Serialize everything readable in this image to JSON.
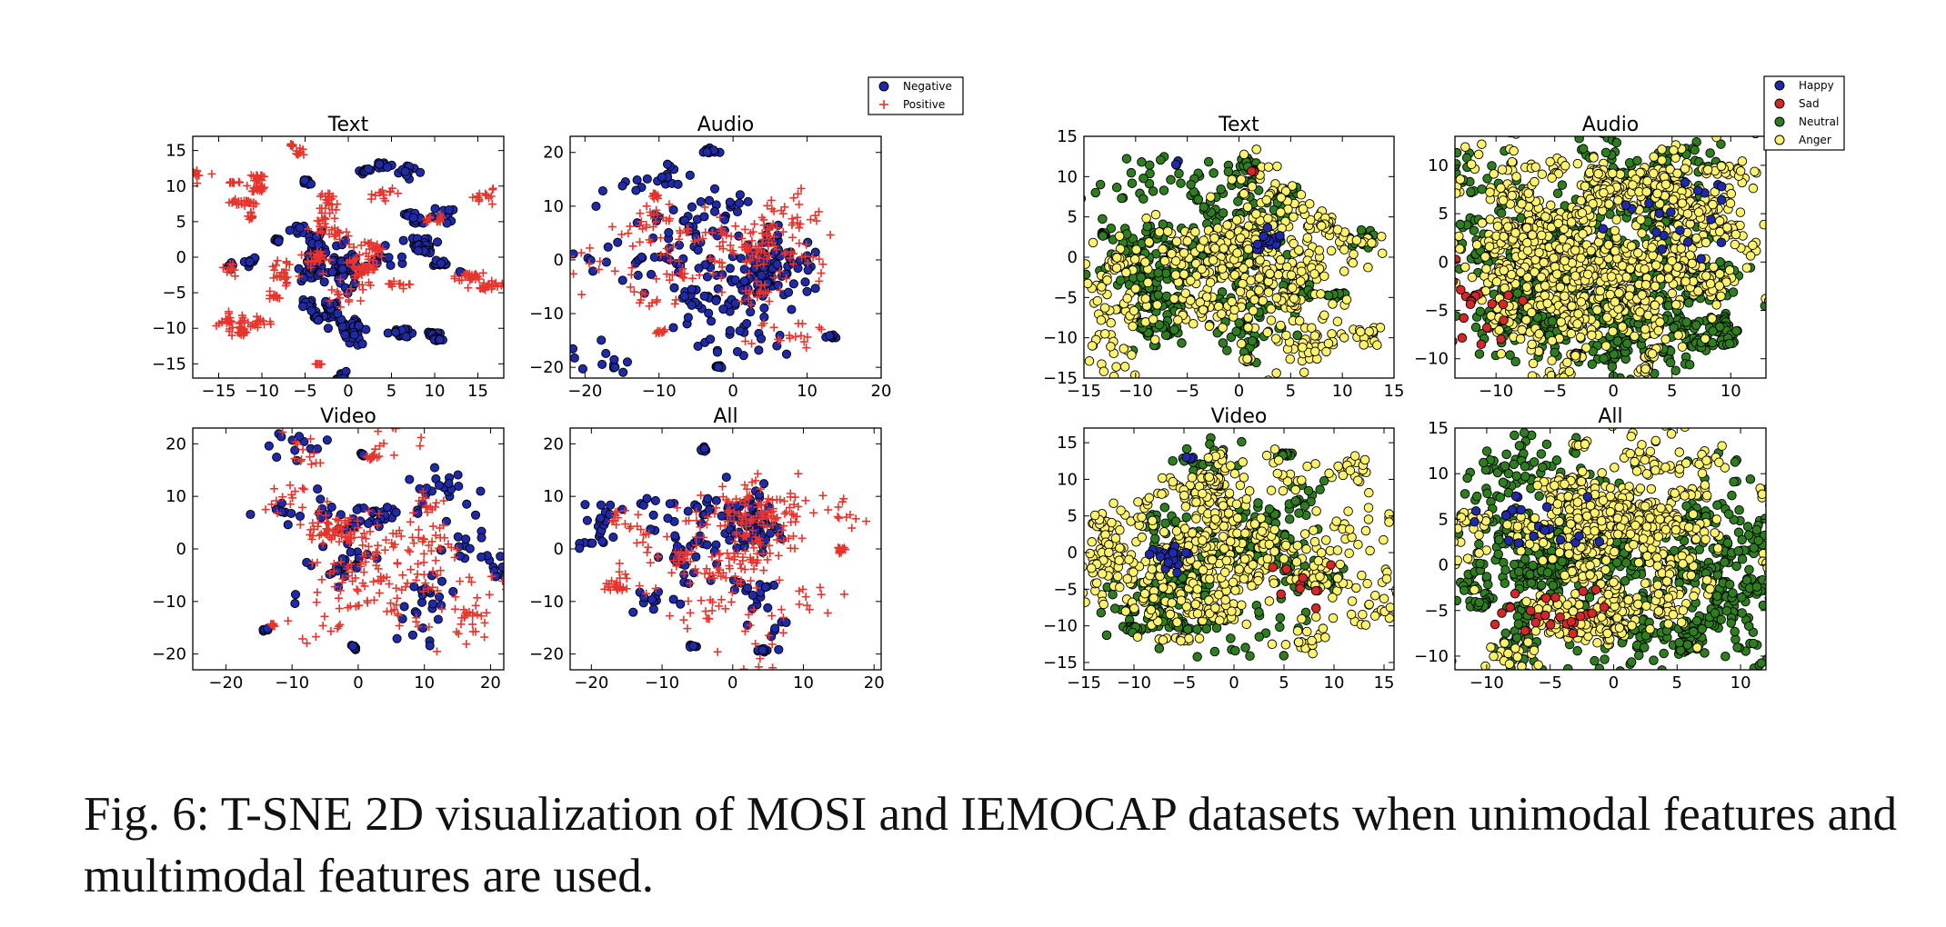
{
  "caption": "Fig. 6: T-SNE 2D visualization of MOSI and IEMOCAP datasets when unimodal features and multimodal features are used.",
  "colors": {
    "negative": "#1f2aa8",
    "positive": "#e8342c",
    "happy": "#1f2aa8",
    "sad": "#d62728",
    "neutral": "#2e7d1f",
    "anger": "#fff36b",
    "marker_edge": "#000000"
  },
  "legends": {
    "mosi": [
      {
        "label": "Negative",
        "marker": "circle",
        "color_key": "negative"
      },
      {
        "label": "Positive",
        "marker": "plus",
        "color_key": "positive"
      }
    ],
    "iemocap": [
      {
        "label": "Happy",
        "marker": "circle",
        "color_key": "happy"
      },
      {
        "label": "Sad",
        "marker": "circle",
        "color_key": "sad"
      },
      {
        "label": "Neutral",
        "marker": "circle",
        "color_key": "neutral"
      },
      {
        "label": "Anger",
        "marker": "circle",
        "color_key": "anger"
      }
    ]
  },
  "chart_data": [
    {
      "id": "mosi-text",
      "type": "scatter",
      "title": "Text",
      "dataset": "MOSI",
      "xlim": [
        -18,
        18
      ],
      "ylim": [
        -17,
        17
      ],
      "xticks": [
        -15,
        -10,
        -5,
        0,
        5,
        10,
        15
      ],
      "yticks": [
        -15,
        -10,
        -5,
        0,
        5,
        10,
        15
      ],
      "series": [
        {
          "name": "Negative",
          "color_key": "negative",
          "marker": "circle",
          "clusters": [
            [
              2,
              13,
              2.2,
              1.3,
              40
            ],
            [
              -6,
              4,
              1.5,
              1.2,
              25
            ],
            [
              0,
              0,
              4,
              3.5,
              120
            ],
            [
              1,
              -9,
              1.6,
              4,
              60
            ],
            [
              9,
              2,
              2.6,
              1.2,
              50
            ],
            [
              8,
              -10.5,
              2.5,
              0.8,
              45
            ],
            [
              -4,
              -7,
              1.6,
              2,
              30
            ],
            [
              -11,
              -1,
              1.5,
              1.5,
              20
            ],
            [
              5,
              6,
              2,
              1.5,
              30
            ],
            [
              -5,
              11,
              1,
              1,
              10
            ],
            [
              13,
              -1.5,
              0.4,
              0.4,
              3
            ]
          ]
        },
        {
          "name": "Positive",
          "color_key": "positive",
          "marker": "plus",
          "clusters": [
            [
              -14,
              9,
              3,
              1.5,
              60
            ],
            [
              -10,
              11.5,
              2,
              0.6,
              30
            ],
            [
              -10,
              4.5,
              0.8,
              1,
              15
            ],
            [
              -6,
              15,
              1,
              1.2,
              20
            ],
            [
              10,
              -4,
              4.5,
              1,
              70
            ],
            [
              -10,
              -10,
              4,
              2.5,
              60
            ],
            [
              8,
              7,
              4,
              2,
              40
            ],
            [
              -3,
              4,
              3,
              3,
              60
            ],
            [
              -5,
              -15,
              1,
              0.3,
              10
            ],
            [
              -1,
              -1,
              3.5,
              3,
              80
            ],
            [
              4,
              -1,
              1.5,
              1.2,
              25
            ],
            [
              -9,
              -2,
              2,
              2,
              30
            ]
          ]
        }
      ]
    },
    {
      "id": "mosi-audio",
      "type": "scatter",
      "title": "Audio",
      "dataset": "MOSI",
      "xlim": [
        -22,
        20
      ],
      "ylim": [
        -22,
        23
      ],
      "xticks": [
        -20,
        -10,
        0,
        10,
        20
      ],
      "yticks": [
        -20,
        -10,
        0,
        10,
        20
      ],
      "series": [
        {
          "name": "Negative",
          "color_key": "negative",
          "marker": "circle",
          "clusters": [
            [
              -3,
              1,
              10,
              9,
              260
            ],
            [
              -5,
              17,
              2,
              1,
              15
            ],
            [
              12,
              -14,
              2,
              1,
              10
            ],
            [
              -5,
              -18,
              2,
              1,
              10
            ]
          ]
        },
        {
          "name": "Positive",
          "color_key": "positive",
          "marker": "plus",
          "clusters": [
            [
              -3,
              0,
              11,
              9,
              240
            ],
            [
              -10,
              -12,
              2,
              1,
              10
            ],
            [
              -13,
              11,
              2,
              2,
              10
            ]
          ]
        }
      ]
    },
    {
      "id": "mosi-video",
      "type": "scatter",
      "title": "Video",
      "dataset": "MOSI",
      "xlim": [
        -25,
        22
      ],
      "ylim": [
        -23,
        23
      ],
      "xticks": [
        -20,
        -10,
        0,
        10,
        20
      ],
      "yticks": [
        -20,
        -10,
        0,
        10,
        20
      ],
      "series": [
        {
          "name": "Negative",
          "color_key": "negative",
          "marker": "circle",
          "clusters": [
            [
              0,
              0,
              10,
              9,
              150
            ],
            [
              -2,
              -19,
              1,
              1,
              8
            ],
            [
              1,
              18,
              1.5,
              1,
              6
            ],
            [
              -13,
              -14,
              1,
              1,
              5
            ]
          ]
        },
        {
          "name": "Positive",
          "color_key": "positive",
          "marker": "plus",
          "clusters": [
            [
              0,
              0,
              11,
              10,
              280
            ],
            [
              2,
              18,
              1.5,
              1,
              12
            ],
            [
              -13,
              -15,
              1,
              1,
              8
            ]
          ]
        }
      ]
    },
    {
      "id": "mosi-all",
      "type": "scatter",
      "title": "All",
      "dataset": "MOSI",
      "xlim": [
        -23,
        21
      ],
      "ylim": [
        -23,
        23
      ],
      "xticks": [
        -20,
        -10,
        0,
        10,
        20
      ],
      "yticks": [
        -20,
        -10,
        0,
        10,
        20
      ],
      "series": [
        {
          "name": "Negative",
          "color_key": "negative",
          "marker": "circle",
          "clusters": [
            [
              -3,
              1,
              10,
              9,
              190
            ],
            [
              -3,
              18,
              1.5,
              1,
              10
            ],
            [
              -8,
              -18,
              2,
              1,
              10
            ],
            [
              3,
              -18,
              2,
              1,
              10
            ]
          ]
        },
        {
          "name": "Positive",
          "color_key": "positive",
          "marker": "plus",
          "clusters": [
            [
              0,
              0,
              11,
              10,
              300
            ],
            [
              -16,
              -7,
              2,
              1,
              15
            ],
            [
              15,
              0,
              2,
              2,
              15
            ]
          ]
        }
      ]
    },
    {
      "id": "iemocap-text",
      "type": "scatter",
      "title": "Text",
      "dataset": "IEMOCAP",
      "xlim": [
        -15,
        15
      ],
      "ylim": [
        -15,
        15
      ],
      "xticks": [
        -15,
        -10,
        -5,
        0,
        5,
        10,
        15
      ],
      "yticks": [
        -15,
        -10,
        -5,
        0,
        5,
        10,
        15
      ],
      "series": [
        {
          "name": "Neutral",
          "color_key": "neutral",
          "marker": "circle",
          "clusters": [
            [
              -2,
              0,
              8,
              7,
              450
            ],
            [
              -13,
              2,
              1,
              1,
              20
            ],
            [
              -9,
              -9,
              2,
              1.5,
              20
            ],
            [
              8,
              -5,
              2,
              1,
              30
            ],
            [
              0,
              10,
              3,
              1.5,
              30
            ],
            [
              10,
              3,
              2,
              2,
              20
            ]
          ]
        },
        {
          "name": "Anger",
          "color_key": "anger",
          "marker": "circle",
          "clusters": [
            [
              -1,
              1,
              9,
              8,
              550
            ],
            [
              -1,
              -12,
              1,
              0.5,
              10
            ],
            [
              6,
              -6,
              2,
              1,
              40
            ],
            [
              10,
              4,
              1.2,
              1,
              20
            ],
            [
              -12,
              0,
              2,
              2,
              20
            ]
          ]
        },
        {
          "name": "Happy",
          "color_key": "happy",
          "marker": "circle",
          "clusters": [
            [
              -2,
              1,
              9,
              8,
              15
            ],
            [
              -7,
              12,
              0.5,
              0.5,
              3
            ]
          ]
        },
        {
          "name": "Sad",
          "color_key": "sad",
          "marker": "circle",
          "clusters": [
            [
              0,
              2,
              9,
              8,
              10
            ],
            [
              0,
              11,
              1,
              0.5,
              3
            ]
          ]
        }
      ]
    },
    {
      "id": "iemocap-audio",
      "type": "scatter",
      "title": "Audio",
      "dataset": "IEMOCAP",
      "xlim": [
        -13.5,
        13
      ],
      "ylim": [
        -12,
        13
      ],
      "xticks": [
        -10,
        -5,
        0,
        5,
        10
      ],
      "yticks": [
        -10,
        -5,
        0,
        5,
        10
      ],
      "series": [
        {
          "name": "Neutral",
          "color_key": "neutral",
          "marker": "circle",
          "clusters": [
            [
              0,
              0,
              8,
              7,
              1000
            ],
            [
              -7,
              -5,
              2.5,
              2,
              100
            ],
            [
              7,
              -7,
              2.5,
              2,
              100
            ]
          ]
        },
        {
          "name": "Anger",
          "color_key": "anger",
          "marker": "circle",
          "clusters": [
            [
              -1,
              1,
              8,
              7,
              900
            ],
            [
              -6,
              0,
              3,
              3,
              200
            ],
            [
              0,
              8,
              5,
              2,
              150
            ],
            [
              -2.5,
              -10,
              0.8,
              0.5,
              20
            ],
            [
              3,
              -10,
              1,
              1,
              30
            ]
          ]
        },
        {
          "name": "Happy",
          "color_key": "happy",
          "marker": "circle",
          "clusters": [
            [
              0,
              0,
              9,
              8,
              20
            ]
          ]
        },
        {
          "name": "Sad",
          "color_key": "sad",
          "marker": "circle",
          "clusters": [
            [
              0,
              -2,
              9,
              7,
              25
            ]
          ]
        }
      ]
    },
    {
      "id": "iemocap-video",
      "type": "scatter",
      "title": "Video",
      "dataset": "IEMOCAP",
      "xlim": [
        -15,
        16
      ],
      "ylim": [
        -16,
        17
      ],
      "xticks": [
        -15,
        -10,
        -5,
        0,
        5,
        10,
        15
      ],
      "yticks": [
        -15,
        -10,
        -5,
        0,
        5,
        10,
        15
      ],
      "series": [
        {
          "name": "Neutral",
          "color_key": "neutral",
          "marker": "circle",
          "clusters": [
            [
              -1,
              0,
              8,
              7,
              350
            ],
            [
              -7,
              -10,
              1.5,
              1,
              30
            ],
            [
              5,
              13,
              1,
              0.5,
              15
            ]
          ]
        },
        {
          "name": "Anger",
          "color_key": "anger",
          "marker": "circle",
          "clusters": [
            [
              -1,
              0,
              9,
              8,
              650
            ],
            [
              -3,
              10,
              2,
              1.5,
              60
            ],
            [
              -5,
              -12,
              2,
              1,
              20
            ]
          ]
        },
        {
          "name": "Happy",
          "color_key": "happy",
          "marker": "circle",
          "clusters": [
            [
              -2,
              8,
              6,
              5,
              25
            ],
            [
              -4,
              13,
              1,
              0.5,
              5
            ]
          ]
        },
        {
          "name": "Sad",
          "color_key": "sad",
          "marker": "circle",
          "clusters": [
            [
              0,
              0,
              9,
              8,
              10
            ]
          ]
        }
      ]
    },
    {
      "id": "iemocap-all",
      "type": "scatter",
      "title": "All",
      "dataset": "IEMOCAP",
      "xlim": [
        -12.5,
        12
      ],
      "ylim": [
        -11.5,
        15
      ],
      "xticks": [
        -10,
        -5,
        0,
        5,
        10
      ],
      "yticks": [
        -10,
        -5,
        0,
        5,
        10,
        15
      ],
      "series": [
        {
          "name": "Neutral",
          "color_key": "neutral",
          "marker": "circle",
          "clusters": [
            [
              0,
              0,
              8,
              7,
              800
            ],
            [
              -7,
              -3,
              3,
              2.5,
              150
            ],
            [
              7,
              -4,
              3,
              2.5,
              150
            ]
          ]
        },
        {
          "name": "Anger",
          "color_key": "anger",
          "marker": "circle",
          "clusters": [
            [
              -1,
              6,
              6,
              3,
              500
            ],
            [
              -2,
              -6,
              3,
              3,
              300
            ],
            [
              0,
              0,
              7,
              7,
              300
            ],
            [
              -3,
              12,
              1,
              1,
              10
            ]
          ]
        },
        {
          "name": "Happy",
          "color_key": "happy",
          "marker": "circle",
          "clusters": [
            [
              0,
              0,
              9,
              8,
              20
            ]
          ]
        },
        {
          "name": "Sad",
          "color_key": "sad",
          "marker": "circle",
          "clusters": [
            [
              0,
              -3,
              9,
              6,
              25
            ]
          ]
        }
      ]
    }
  ]
}
